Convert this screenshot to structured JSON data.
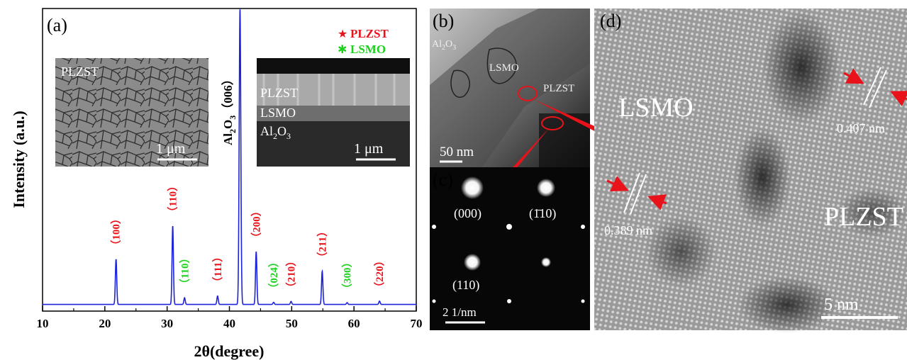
{
  "panel_a": {
    "label": "(a)",
    "legend": [
      {
        "symbol": "★",
        "text": "PLZST",
        "color": "#e8131a"
      },
      {
        "symbol": "✱",
        "text": "LSMO",
        "color": "#1fd11f"
      }
    ],
    "substrate_peak_label": "Al2O3（006）",
    "inset_surface": {
      "label": "PLZST",
      "scale": "1  μm"
    },
    "inset_cross_section": {
      "layers": [
        "PLZST",
        "LSMO",
        "Al2O3"
      ],
      "scale": "1  μm"
    }
  },
  "panel_b": {
    "label": "(b)",
    "texts": [
      "Al2O3",
      "LSMO",
      "PLZST"
    ],
    "scale": "50  nm"
  },
  "panel_c": {
    "label": "(c)",
    "spots": [
      "(000)",
      "(1̄10)",
      "(110)"
    ],
    "scale": "2  1/nm"
  },
  "panel_d": {
    "label": "(d)",
    "texts": [
      "LSMO",
      "PLZST"
    ],
    "d_spacings": [
      "0.407 nm",
      "0.389 nm"
    ],
    "scale": "5  nm"
  },
  "colors": {
    "line": "#1c23d8",
    "plzst": "#e8131a",
    "lsmo": "#1fd11f"
  },
  "chart_data": {
    "type": "line",
    "xlabel": "2θ(degree)",
    "ylabel": "Intensity (a.u.)",
    "xlim": [
      10,
      70
    ],
    "xticks": [
      10,
      20,
      30,
      40,
      50,
      60,
      70
    ],
    "ylim": [
      0,
      100
    ],
    "y_ticks_shown": false,
    "baseline": 2.2,
    "peaks": [
      {
        "x": 21.8,
        "height": 15.0,
        "label": "(100)",
        "phase": "PLZST"
      },
      {
        "x": 30.9,
        "height": 26.0,
        "label": "(110)",
        "phase": "PLZST"
      },
      {
        "x": 32.8,
        "height": 2.2,
        "label": "(110)",
        "phase": "LSMO"
      },
      {
        "x": 38.1,
        "height": 2.8,
        "label": "(111)",
        "phase": "PLZST"
      },
      {
        "x": 41.7,
        "height": 97.8,
        "label": "Al2O3 (006)",
        "phase": "substrate"
      },
      {
        "x": 44.3,
        "height": 17.5,
        "label": "(200)",
        "phase": "PLZST"
      },
      {
        "x": 47.1,
        "height": 0.7,
        "label": "(024)",
        "phase": "LSMO"
      },
      {
        "x": 49.9,
        "height": 1.0,
        "label": "(210)",
        "phase": "PLZST"
      },
      {
        "x": 54.9,
        "height": 11.0,
        "label": "(211)",
        "phase": "PLZST"
      },
      {
        "x": 58.9,
        "height": 0.6,
        "label": "(300)",
        "phase": "LSMO"
      },
      {
        "x": 64.1,
        "height": 1.1,
        "label": "(220)",
        "phase": "PLZST"
      }
    ]
  }
}
